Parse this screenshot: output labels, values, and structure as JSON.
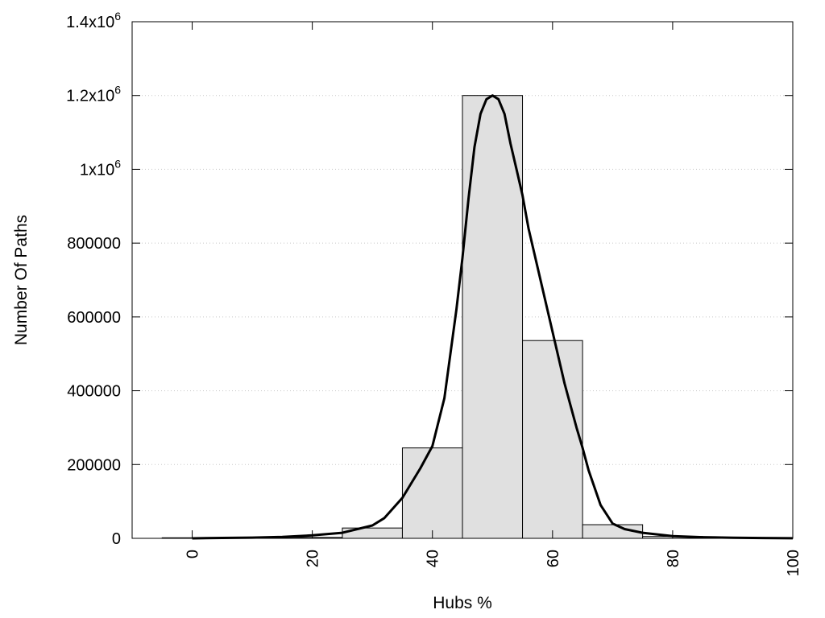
{
  "chart_data": {
    "type": "bar",
    "title": "",
    "xlabel": "Hubs %",
    "ylabel": "Number Of Paths",
    "xlim": [
      -10,
      100
    ],
    "ylim": [
      0,
      1400000
    ],
    "grid": "horizontal-dotted",
    "bar_color": "#e0e0e0",
    "bar_width": 10,
    "x_ticks": [
      {
        "value": 0,
        "label": "0"
      },
      {
        "value": 20,
        "label": "20"
      },
      {
        "value": 40,
        "label": "40"
      },
      {
        "value": 60,
        "label": "60"
      },
      {
        "value": 80,
        "label": "80"
      },
      {
        "value": 100,
        "label": "100"
      }
    ],
    "y_ticks": [
      {
        "value": 0,
        "label": "0"
      },
      {
        "value": 200000,
        "label": "200000"
      },
      {
        "value": 400000,
        "label": "400000"
      },
      {
        "value": 600000,
        "label": "600000"
      },
      {
        "value": 800000,
        "label": "800000"
      },
      {
        "value": 1000000,
        "label": "1x10",
        "sup": "6"
      },
      {
        "value": 1200000,
        "label": "1.2x10",
        "sup": "6"
      },
      {
        "value": 1400000,
        "label": "1.4x10",
        "sup": "6"
      }
    ],
    "bars": [
      {
        "x": 0,
        "value": 1500
      },
      {
        "x": 10,
        "value": 1500
      },
      {
        "x": 20,
        "value": 2500
      },
      {
        "x": 30,
        "value": 28000
      },
      {
        "x": 40,
        "value": 245000
      },
      {
        "x": 50,
        "value": 1200000
      },
      {
        "x": 60,
        "value": 536000
      },
      {
        "x": 70,
        "value": 37000
      },
      {
        "x": 80,
        "value": 5000
      },
      {
        "x": 90,
        "value": 1500
      }
    ],
    "curve": {
      "x": [
        0,
        5,
        10,
        15,
        20,
        25,
        30,
        32,
        35,
        38,
        40,
        42,
        44,
        45,
        46,
        47,
        48,
        49,
        50,
        51,
        52,
        53,
        54,
        55,
        56,
        58,
        60,
        62,
        64,
        65,
        66,
        68,
        70,
        72,
        75,
        80,
        85,
        90,
        95,
        100
      ],
      "y": [
        0,
        1000,
        2000,
        4000,
        8000,
        15000,
        35000,
        55000,
        110000,
        190000,
        250000,
        380000,
        620000,
        760000,
        920000,
        1060000,
        1150000,
        1190000,
        1200000,
        1190000,
        1150000,
        1070000,
        1000000,
        930000,
        840000,
        700000,
        560000,
        420000,
        300000,
        245000,
        185000,
        90000,
        40000,
        25000,
        15000,
        6000,
        3000,
        1500,
        800,
        300
      ]
    },
    "curve_color": "#000000"
  }
}
